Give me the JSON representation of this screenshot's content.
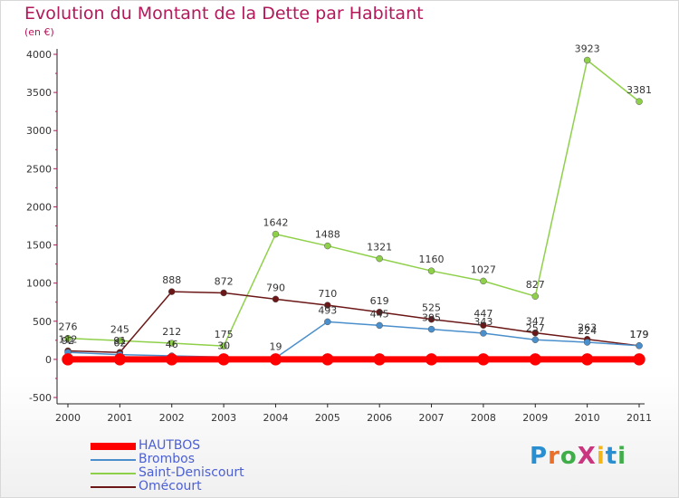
{
  "title": "Evolution du Montant de la Dette par Habitant",
  "subtitle": "(en €)",
  "logo": {
    "text": "ProXiti",
    "colors": [
      "#2a8fd0",
      "#e8702a",
      "#3fae49",
      "#c9357e",
      "#f2b61b",
      "#2a8fd0",
      "#3fae49"
    ]
  },
  "chart_data": {
    "type": "line",
    "title": "Evolution du Montant de la Dette par Habitant",
    "ylabel": "(en €)",
    "xlabel": "",
    "x": [
      "2000",
      "2001",
      "2002",
      "2003",
      "2004",
      "2005",
      "2006",
      "2007",
      "2008",
      "2009",
      "2010",
      "2011"
    ],
    "ylim": [
      -500,
      4000
    ],
    "yticks": [
      -500,
      0,
      500,
      1000,
      1500,
      2000,
      2500,
      3000,
      3500,
      4000
    ],
    "grid": false,
    "legend": "bottom-left",
    "series": [
      {
        "name": "HAUTBOS",
        "color": "#ff0000",
        "values": [
          0,
          0,
          0,
          0,
          0,
          0,
          0,
          0,
          0,
          0,
          0,
          0
        ]
      },
      {
        "name": "Brombos",
        "color": "#4a8fcc",
        "values": [
          92,
          62,
          46,
          30,
          19,
          493,
          445,
          395,
          343,
          257,
          224,
          179
        ]
      },
      {
        "name": "Saint-Deniscourt",
        "color": "#8fd04a",
        "values": [
          276,
          245,
          212,
          175,
          1642,
          1488,
          1321,
          1160,
          1027,
          827,
          3923,
          3381
        ]
      },
      {
        "name": "Omécourt",
        "color": "#6b1717",
        "values": [
          112,
          91,
          888,
          872,
          790,
          710,
          619,
          525,
          447,
          347,
          263,
          179
        ]
      }
    ]
  }
}
